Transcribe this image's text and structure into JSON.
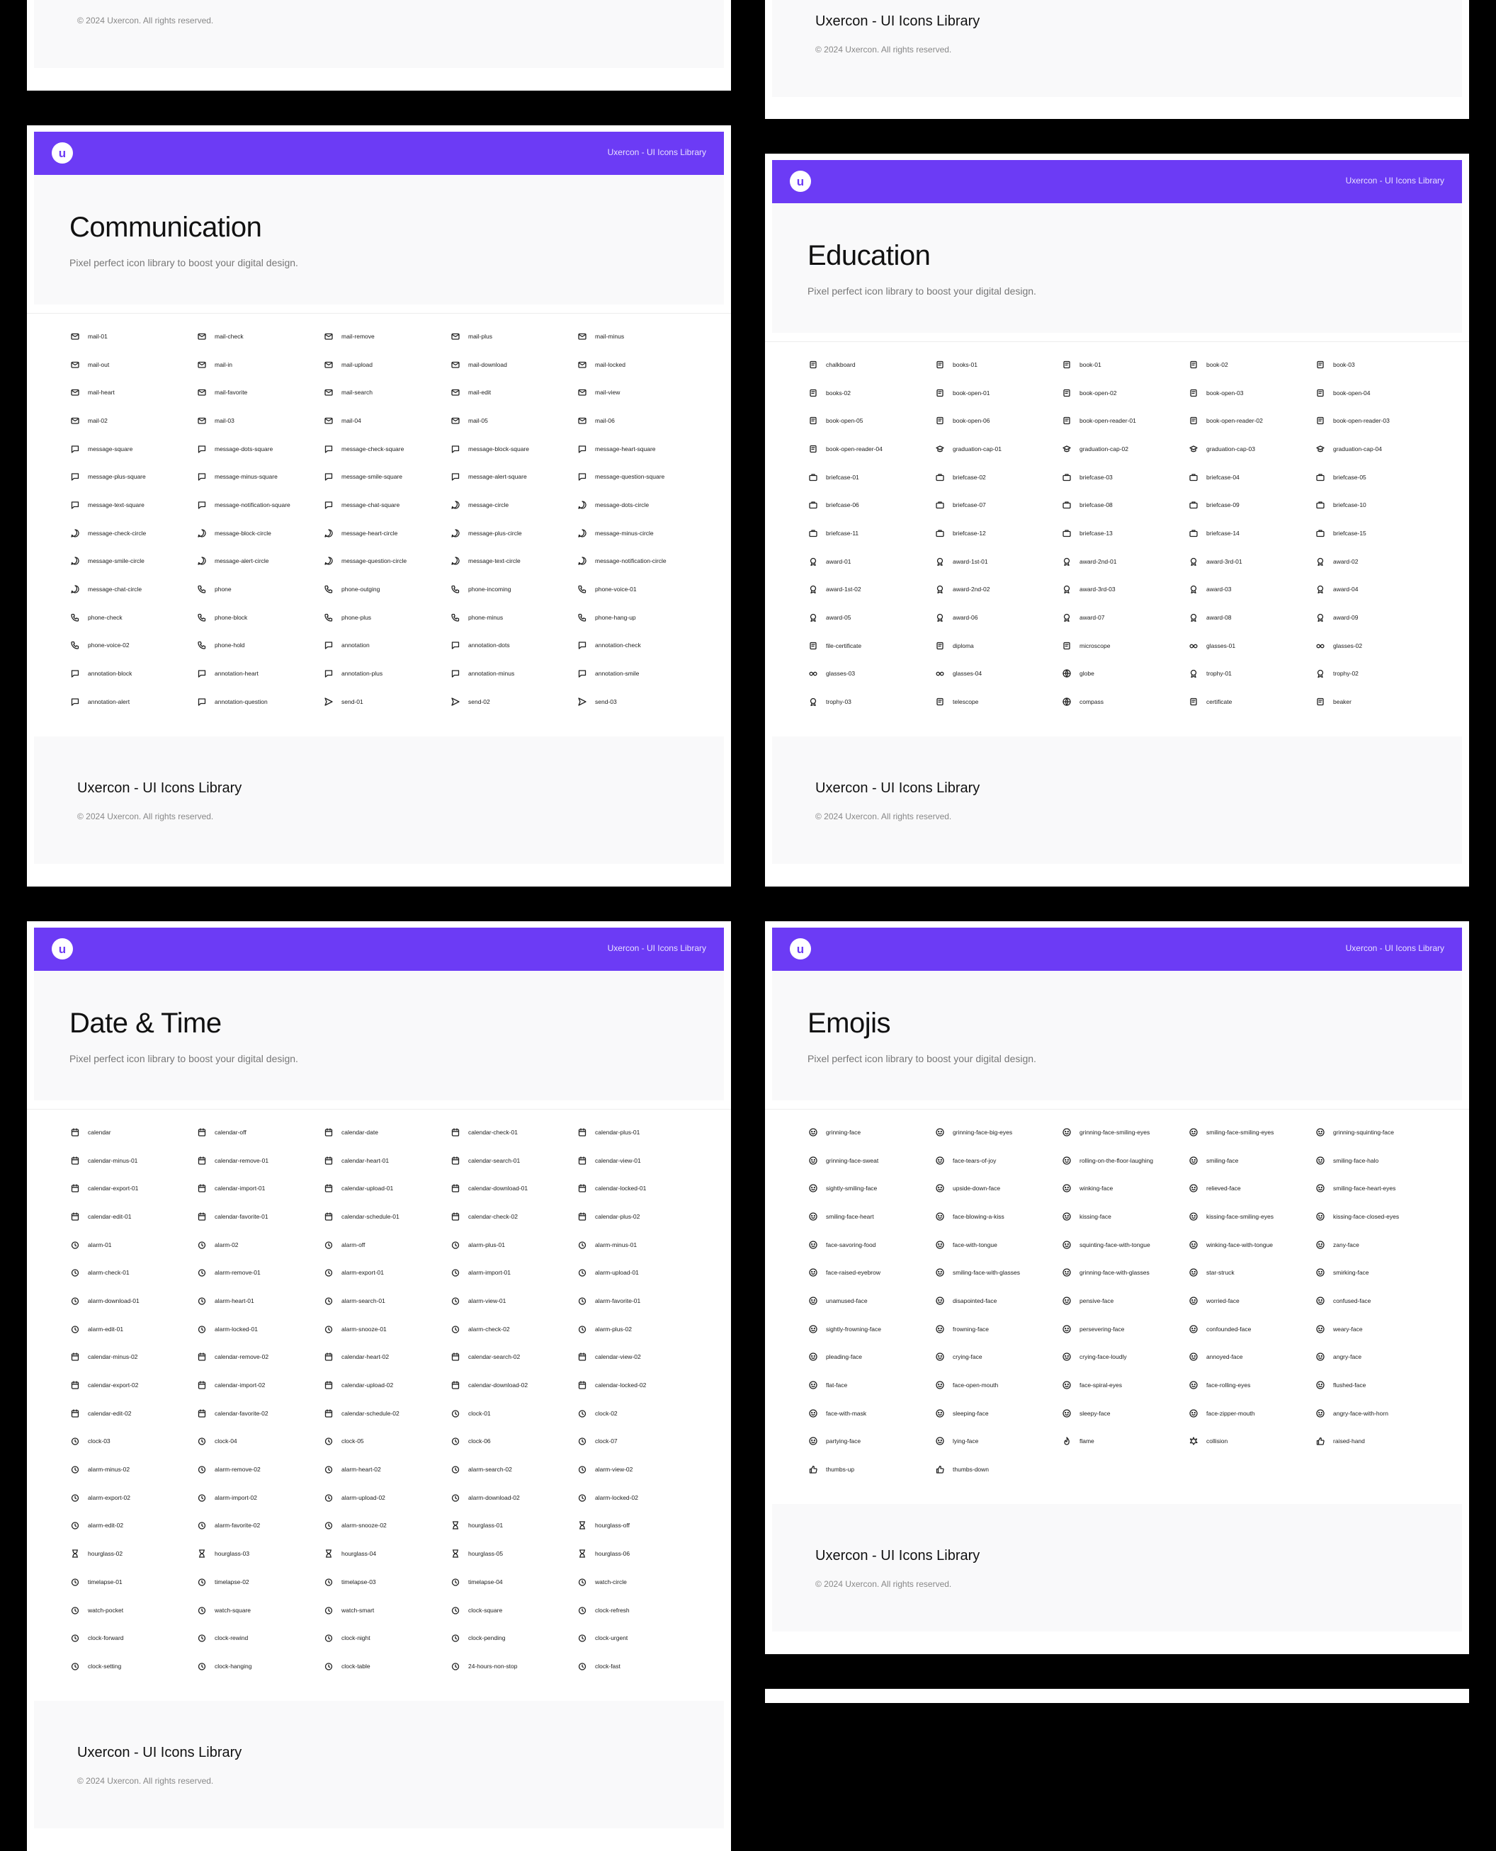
{
  "brand": {
    "logo_letter": "u",
    "header_text": "Uxercon - UI Icons Library",
    "accent": "#6c3bf5"
  },
  "footer": {
    "title": "Uxercon - UI Icons Library",
    "copyright": "© 2024 Uxercon. All rights reserved."
  },
  "subtitle": "Pixel perfect icon library to boost your digital design.",
  "sections": [
    {
      "title": "Communication",
      "items": [
        "mail-01",
        "mail-check",
        "mail-remove",
        "mail-plus",
        "mail-minus",
        "mail-out",
        "mail-in",
        "mail-upload",
        "mail-download",
        "mail-locked",
        "mail-heart",
        "mail-favorite",
        "mail-search",
        "mail-edit",
        "mail-view",
        "mail-02",
        "mail-03",
        "mail-04",
        "mail-05",
        "mail-06",
        "message-square",
        "message-dots-square",
        "message-check-square",
        "message-block-square",
        "message-heart-square",
        "message-plus-square",
        "message-minus-square",
        "message-smile-square",
        "message-alert-square",
        "message-question-square",
        "message-text-square",
        "message-notification-square",
        "message-chat-square",
        "message-circle",
        "message-dots-circle",
        "message-check-circle",
        "message-block-circle",
        "message-heart-circle",
        "message-plus-circle",
        "message-minus-circle",
        "message-smile-circle",
        "message-alert-circle",
        "message-question-circle",
        "message-text-circle",
        "message-notification-circle",
        "message-chat-circle",
        "phone",
        "phone-outging",
        "phone-incoming",
        "phone-voice-01",
        "phone-check",
        "phone-block",
        "phone-plus",
        "phone-minus",
        "phone-hang-up",
        "phone-voice-02",
        "phone-hold",
        "annotation",
        "annotation-dots",
        "annotation-check",
        "annotation-block",
        "annotation-heart",
        "annotation-plus",
        "annotation-minus",
        "annotation-smile",
        "annotation-alert",
        "annotation-question",
        "send-01",
        "send-02",
        "send-03"
      ]
    },
    {
      "title": "Education",
      "items": [
        "chalkboard",
        "books-01",
        "book-01",
        "book-02",
        "book-03",
        "books-02",
        "book-open-01",
        "book-open-02",
        "book-open-03",
        "book-open-04",
        "book-open-05",
        "book-open-06",
        "book-open-reader-01",
        "book-open-reader-02",
        "book-open-reader-03",
        "book-open-reader-04",
        "graduation-cap-01",
        "graduation-cap-02",
        "graduation-cap-03",
        "graduation-cap-04",
        "briefcase-01",
        "briefcase-02",
        "briefcase-03",
        "briefcase-04",
        "briefcase-05",
        "briefcase-06",
        "briefcase-07",
        "briefcase-08",
        "briefcase-09",
        "briefcase-10",
        "briefcase-11",
        "briefcase-12",
        "briefcase-13",
        "briefcase-14",
        "briefcase-15",
        "award-01",
        "award-1st-01",
        "award-2nd-01",
        "award-3rd-01",
        "award-02",
        "award-1st-02",
        "award-2nd-02",
        "award-3rd-03",
        "award-03",
        "award-04",
        "award-05",
        "award-06",
        "award-07",
        "award-08",
        "award-09",
        "file-certificate",
        "diploma",
        "microscope",
        "glasses-01",
        "glasses-02",
        "glasses-03",
        "glasses-04",
        "globe",
        "trophy-01",
        "trophy-02",
        "trophy-03",
        "telescope",
        "compass",
        "certificate",
        "beaker"
      ]
    },
    {
      "title": "Date & Time",
      "items": [
        "calendar",
        "calendar-off",
        "calendar-date",
        "calendar-check-01",
        "calendar-plus-01",
        "calendar-minus-01",
        "calendar-remove-01",
        "calendar-heart-01",
        "calendar-search-01",
        "calendar-view-01",
        "calendar-export-01",
        "calendar-import-01",
        "calendar-upload-01",
        "calendar-download-01",
        "calendar-locked-01",
        "calendar-edit-01",
        "calendar-favorite-01",
        "calendar-schedule-01",
        "calendar-check-02",
        "calendar-plus-02",
        "alarm-01",
        "alarm-02",
        "alarm-off",
        "alarm-plus-01",
        "alarm-minus-01",
        "alarm-check-01",
        "alarm-remove-01",
        "alarm-export-01",
        "alarm-import-01",
        "alarm-upload-01",
        "alarm-download-01",
        "alarm-heart-01",
        "alarm-search-01",
        "alarm-view-01",
        "alarm-favorite-01",
        "alarm-edit-01",
        "alarm-locked-01",
        "alarm-snooze-01",
        "alarm-check-02",
        "alarm-plus-02",
        "calendar-minus-02",
        "calendar-remove-02",
        "calendar-heart-02",
        "calendar-search-02",
        "calendar-view-02",
        "calendar-export-02",
        "calendar-import-02",
        "calendar-upload-02",
        "calendar-download-02",
        "calendar-locked-02",
        "calendar-edit-02",
        "calendar-favorite-02",
        "calendar-schedule-02",
        "clock-01",
        "clock-02",
        "clock-03",
        "clock-04",
        "clock-05",
        "clock-06",
        "clock-07",
        "alarm-minus-02",
        "alarm-remove-02",
        "alarm-heart-02",
        "alarm-search-02",
        "alarm-view-02",
        "alarm-export-02",
        "alarm-import-02",
        "alarm-upload-02",
        "alarm-download-02",
        "alarm-locked-02",
        "alarm-edit-02",
        "alarm-favorite-02",
        "alarm-snooze-02",
        "hourglass-01",
        "hourglass-off",
        "hourglass-02",
        "hourglass-03",
        "hourglass-04",
        "hourglass-05",
        "hourglass-06",
        "timelapse-01",
        "timelapse-02",
        "timelapse-03",
        "timelapse-04",
        "watch-circle",
        "watch-pocket",
        "watch-square",
        "watch-smart",
        "clock-square",
        "clock-refresh",
        "clock-forward",
        "clock-rewind",
        "clock-night",
        "clock-pending",
        "clock-urgent",
        "clock-setting",
        "clock-hanging",
        "clock-table",
        "24-hours-non-stop",
        "clock-fast"
      ]
    },
    {
      "title": "Emojis",
      "items": [
        "grinning-face",
        "grinning-face-big-eyes",
        "grinning-face-smiling-eyes",
        "smiling-face-smiling-eyes",
        "grinning-squinting-face",
        "grinning-face-sweat",
        "face-tears-of-joy",
        "rolling-on-the-floor-laughing",
        "smiling-face",
        "smiling-face-halo",
        "sightly-smiling-face",
        "upside-down-face",
        "winking-face",
        "relieved-face",
        "smiling-face-heart-eyes",
        "smiling-face-heart",
        "face-blowing-a-kiss",
        "kissing-face",
        "kissing-face-smiling-eyes",
        "kissing-face-closed-eyes",
        "face-savoring-food",
        "face-with-tongue",
        "squinting-face-with-tongue",
        "winking-face-with-tongue",
        "zany-face",
        "face-raised-eyebrow",
        "smiling-face-with-glasses",
        "grinning-face-with-glasses",
        "star-struck",
        "smirking-face",
        "unamused-face",
        "disapointed-face",
        "pensive-face",
        "worried-face",
        "confused-face",
        "sightly-frowning-face",
        "frowning-face",
        "persevering-face",
        "confounded-face",
        "weary-face",
        "pleading-face",
        "crying-face",
        "crying-face-loudly",
        "annoyed-face",
        "angry-face",
        "flat-face",
        "face-open-mouth",
        "face-spiral-eyes",
        "face-rolling-eyes",
        "flushed-face",
        "face-with-mask",
        "sleeping-face",
        "sleepy-face",
        "face-zipper-mouth",
        "angry-face-with-horn",
        "partying-face",
        "lying-face",
        "flame",
        "collision",
        "raised-hand",
        "thumbs-up",
        "thumbs-down"
      ]
    }
  ]
}
